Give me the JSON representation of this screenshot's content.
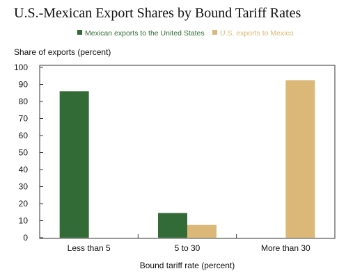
{
  "title": "U.S.-Mexican Export Shares by Bound Tariff Rates",
  "chart_data": {
    "type": "bar",
    "title": "U.S.-Mexican Export Shares by Bound Tariff Rates",
    "ylabel": "Share of exports (percent)",
    "xlabel": "Bound tariff rate (percent)",
    "categories": [
      "Less than 5",
      "5 to 30",
      "More than 30"
    ],
    "ylim": [
      0,
      100
    ],
    "yticks": [
      0,
      10,
      20,
      30,
      40,
      50,
      60,
      70,
      80,
      90,
      100
    ],
    "grid": false,
    "legend_position": "top-center",
    "series": [
      {
        "name": "Mexican exports to the United States",
        "color": "#336b37",
        "values": [
          86,
          14.5,
          0
        ]
      },
      {
        "name": "U.S. exports to Mexico",
        "color": "#dbb878",
        "values": [
          0,
          7.5,
          92.5
        ]
      }
    ]
  }
}
